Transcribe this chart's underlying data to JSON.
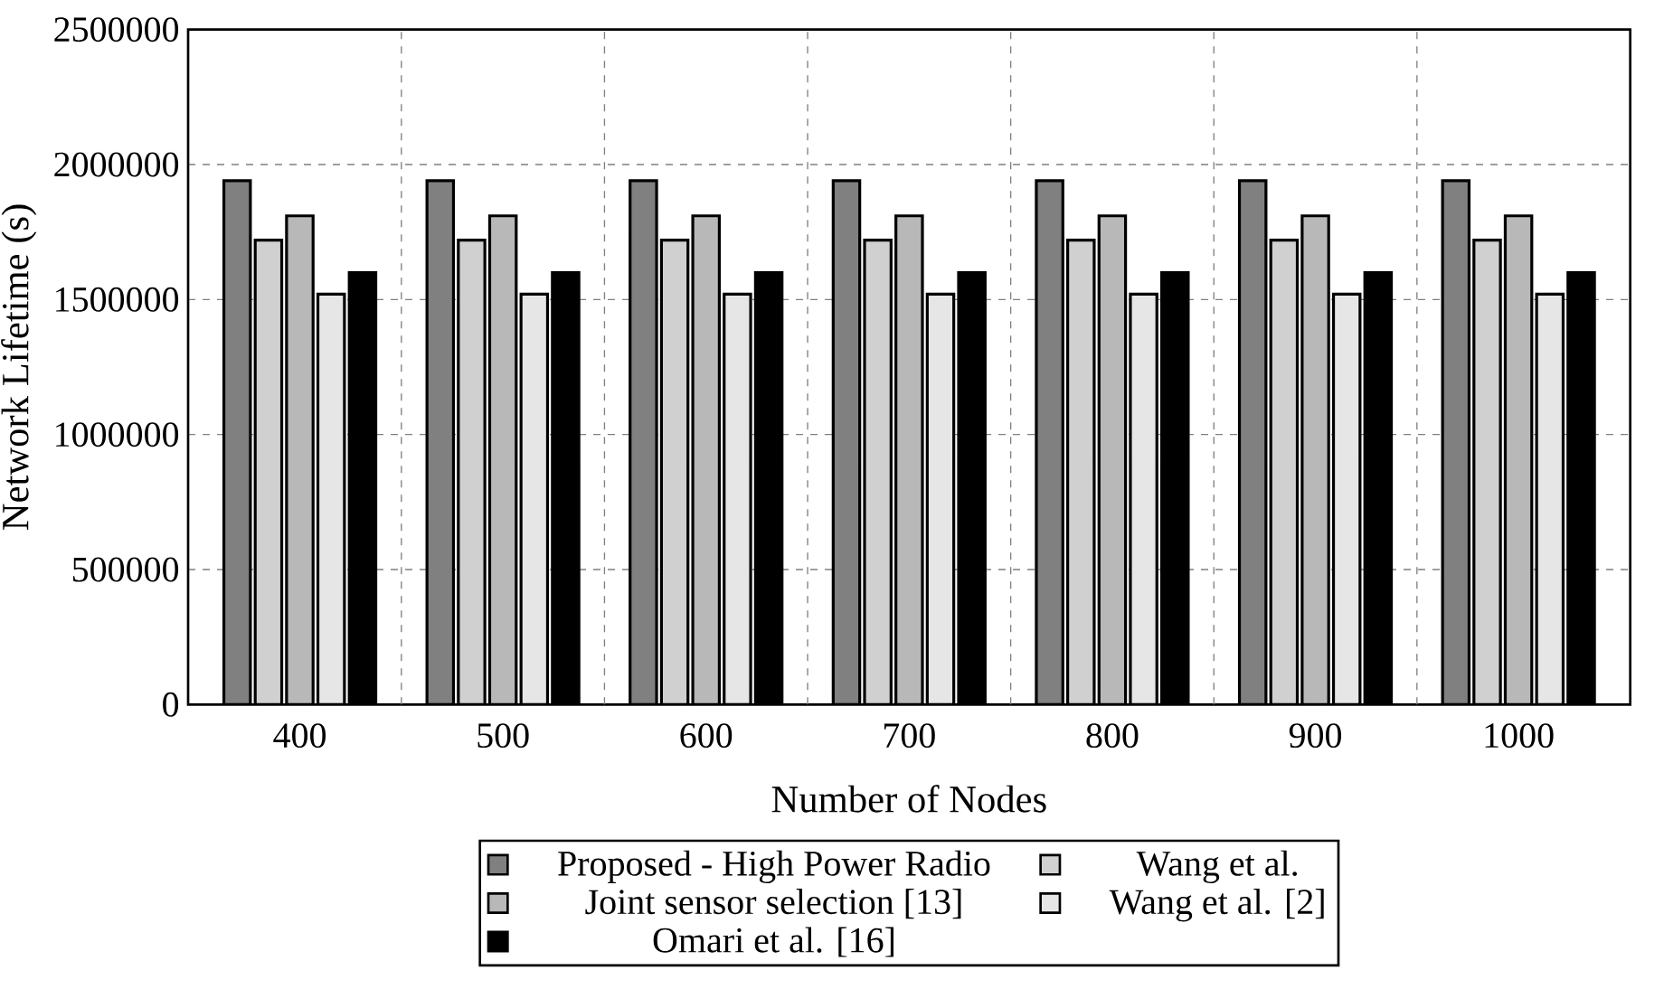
{
  "chart_data": {
    "type": "bar",
    "xlabel": "Number of Nodes",
    "ylabel": "Network Lifetime (s)",
    "categories": [
      "400",
      "500",
      "600",
      "700",
      "800",
      "900",
      "1000"
    ],
    "series": [
      {
        "name": "Proposed - High Power Radio",
        "color": "#808080",
        "values": [
          1940000,
          1940000,
          1940000,
          1940000,
          1940000,
          1940000,
          1940000
        ]
      },
      {
        "name": "Wang et al.",
        "color": "#d0d0d0",
        "values": [
          1720000,
          1720000,
          1720000,
          1720000,
          1720000,
          1720000,
          1720000
        ]
      },
      {
        "name": "Joint sensor selection [13]",
        "color": "#b8b8b8",
        "values": [
          1810000,
          1810000,
          1810000,
          1810000,
          1810000,
          1810000,
          1810000
        ]
      },
      {
        "name": "Wang et al. [2]",
        "color": "#e6e6e6",
        "values": [
          1520000,
          1520000,
          1520000,
          1520000,
          1520000,
          1520000,
          1520000
        ]
      },
      {
        "name": "Omari et al. [16]",
        "color": "#000000",
        "values": [
          1600000,
          1600000,
          1600000,
          1600000,
          1600000,
          1600000,
          1600000
        ]
      }
    ],
    "ylim": [
      0,
      2500000
    ],
    "yticks": [
      0,
      500000,
      1000000,
      1500000,
      2000000,
      2500000
    ],
    "grid": true,
    "legend": "bottom"
  }
}
